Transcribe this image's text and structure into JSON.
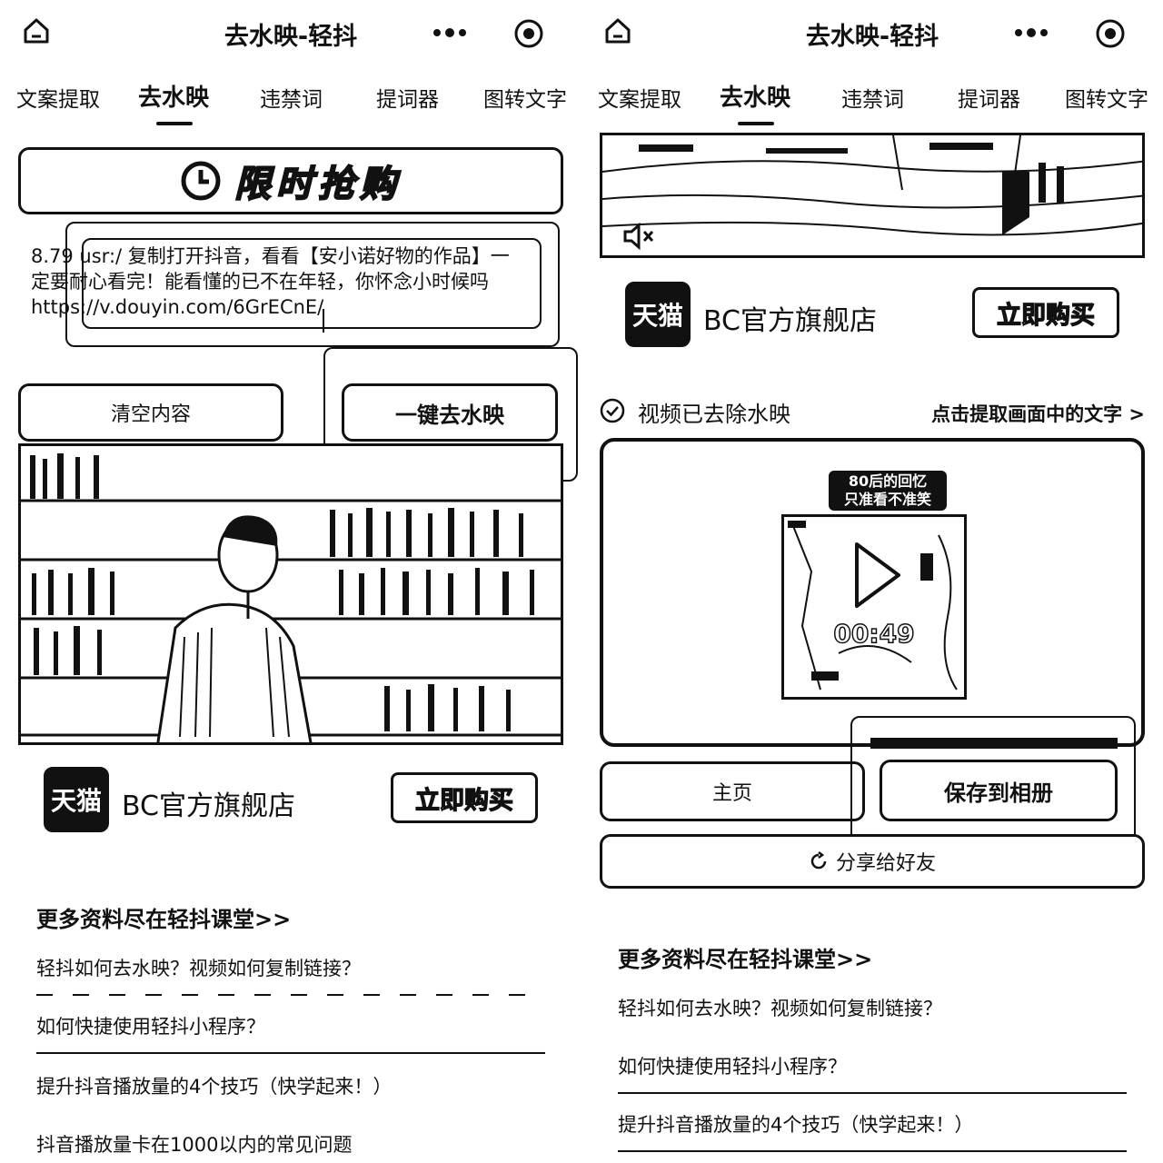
{
  "left": {
    "app_title": "去水映-轻抖",
    "tabs": [
      "文案提取",
      "去水映",
      "违禁词",
      "提词器",
      "图转文字"
    ],
    "promo_label": "限时抢购",
    "link_lines": [
      "8.79 usr:/ 复制打开抖音，看看【安小诺好物的作品】一",
      "定要耐心看完！能看懂的已不在年轻，你怀念小时候吗",
      "https://v.douyin.com/6GrECnE/"
    ],
    "clear_button": "清空内容",
    "remove_button": "一键去水映",
    "shop_logo": "天猫",
    "shop_name": "BC官方旗舰店",
    "buy_button": "立即购买",
    "more_title": "更多资料尽在轻抖课堂>>",
    "articles": [
      "轻抖如何去水映？视频如何复制链接？",
      "如何快捷使用轻抖小程序？",
      "提升抖音播放量的4个技巧（快学起来！）",
      "抖音播放量卡在1000以内的常见问题"
    ]
  },
  "right": {
    "app_title": "去水映-轻抖",
    "tabs": [
      "文案提取",
      "去水映",
      "违禁词",
      "提词器",
      "图转文字"
    ],
    "shop_logo": "天猫",
    "shop_name": "BC官方旗舰店",
    "buy_button": "立即购买",
    "status_text": "视频已去除水映",
    "extract_link": "点击提取画面中的文字 >",
    "thumb_label_line1": "80后的回忆",
    "thumb_label_line2": "只准看不准笑",
    "duration": "00:49",
    "home_button": "主页",
    "save_button": "保存到相册",
    "share_button": "分享给好友",
    "more_title": "更多资料尽在轻抖课堂>>",
    "articles": [
      "轻抖如何去水映？视频如何复制链接？",
      "如何快捷使用轻抖小程序？",
      "提升抖音播放量的4个技巧（快学起来！）"
    ]
  }
}
